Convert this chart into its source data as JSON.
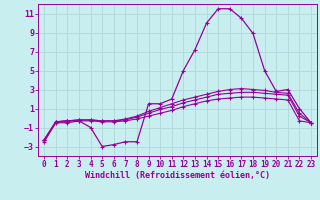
{
  "xlabel": "Windchill (Refroidissement éolien,°C)",
  "background_color": "#c8eef0",
  "grid_color": "#b0d8d8",
  "line_color": "#990099",
  "x_hours": [
    0,
    1,
    2,
    3,
    4,
    5,
    6,
    7,
    8,
    9,
    10,
    11,
    12,
    13,
    14,
    15,
    16,
    17,
    18,
    19,
    20,
    21,
    22,
    23
  ],
  "series1": [
    -2.5,
    -0.5,
    -0.5,
    -0.3,
    -1.0,
    -3.0,
    -2.8,
    -2.5,
    -2.5,
    1.5,
    1.5,
    2.0,
    5.0,
    7.2,
    10.0,
    11.5,
    11.5,
    10.5,
    8.9,
    5.0,
    2.8,
    3.0,
    1.0,
    -0.5
  ],
  "series2": [
    -2.3,
    -0.4,
    -0.3,
    -0.3,
    -0.3,
    -0.4,
    -0.4,
    -0.3,
    -0.1,
    0.2,
    0.5,
    0.8,
    1.2,
    1.5,
    1.8,
    2.0,
    2.1,
    2.2,
    2.2,
    2.1,
    2.0,
    1.9,
    -0.3,
    -0.5
  ],
  "series3": [
    -2.3,
    -0.4,
    -0.3,
    -0.2,
    -0.2,
    -0.3,
    -0.3,
    -0.2,
    0.1,
    0.5,
    0.9,
    1.2,
    1.6,
    1.9,
    2.2,
    2.5,
    2.6,
    2.7,
    2.7,
    2.6,
    2.5,
    2.4,
    0.2,
    -0.5
  ],
  "series4": [
    -2.3,
    -0.4,
    -0.3,
    -0.2,
    -0.2,
    -0.3,
    -0.3,
    -0.1,
    0.2,
    0.7,
    1.1,
    1.5,
    1.9,
    2.2,
    2.5,
    2.8,
    3.0,
    3.1,
    3.0,
    2.9,
    2.7,
    2.6,
    0.5,
    -0.5
  ],
  "ylim": [
    -4,
    12
  ],
  "yticks": [
    -3,
    -1,
    1,
    3,
    5,
    7,
    9,
    11
  ],
  "xticks": [
    0,
    1,
    2,
    3,
    4,
    5,
    6,
    7,
    8,
    9,
    10,
    11,
    12,
    13,
    14,
    15,
    16,
    17,
    18,
    19,
    20,
    21,
    22,
    23
  ],
  "tick_fontsize": 5.5,
  "xlabel_fontsize": 6.0
}
